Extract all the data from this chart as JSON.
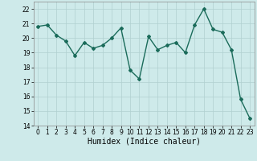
{
  "x": [
    0,
    1,
    2,
    3,
    4,
    5,
    6,
    7,
    8,
    9,
    10,
    11,
    12,
    13,
    14,
    15,
    16,
    17,
    18,
    19,
    20,
    21,
    22,
    23
  ],
  "y": [
    20.8,
    20.9,
    20.2,
    19.8,
    18.8,
    19.7,
    19.3,
    19.5,
    20.0,
    20.7,
    17.8,
    17.2,
    20.1,
    19.2,
    19.5,
    19.7,
    19.0,
    20.9,
    22.0,
    20.6,
    20.4,
    19.2,
    15.8,
    14.5
  ],
  "line_color": "#1a6b5a",
  "marker": "D",
  "marker_size": 2,
  "bg_color": "#ceeaea",
  "grid_color": "#b0d0d0",
  "xlabel": "Humidex (Indice chaleur)",
  "ylim": [
    14,
    22.5
  ],
  "xlim": [
    -0.5,
    23.5
  ],
  "yticks": [
    14,
    15,
    16,
    17,
    18,
    19,
    20,
    21,
    22
  ],
  "xticks": [
    0,
    1,
    2,
    3,
    4,
    5,
    6,
    7,
    8,
    9,
    10,
    11,
    12,
    13,
    14,
    15,
    16,
    17,
    18,
    19,
    20,
    21,
    22,
    23
  ],
  "tick_fontsize": 5.5,
  "xlabel_fontsize": 7,
  "line_width": 1.0
}
